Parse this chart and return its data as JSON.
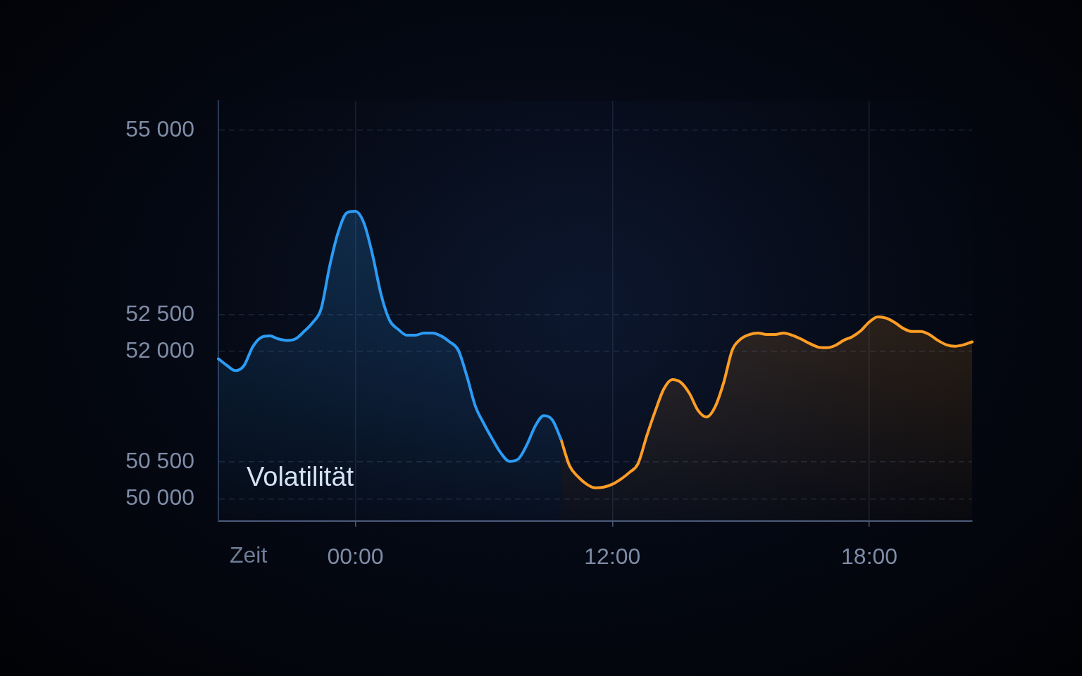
{
  "chart_data": {
    "type": "area",
    "xlabel": "Zeit",
    "annotations": [
      "Volatilität"
    ],
    "categories": [
      null,
      null,
      null,
      null,
      null,
      null,
      null,
      null,
      null,
      null,
      null,
      null,
      null,
      null,
      null,
      null,
      "00:00",
      null,
      null,
      null,
      null,
      null,
      null,
      null,
      null,
      null,
      null,
      null,
      null,
      null,
      null,
      null,
      null,
      null,
      null,
      null,
      null,
      null,
      null,
      null,
      null,
      null,
      null,
      null,
      null,
      null,
      "12:00",
      null,
      null,
      null,
      null,
      null,
      null,
      null,
      null,
      null,
      null,
      null,
      null,
      null,
      null,
      null,
      null,
      null,
      null,
      null,
      null,
      null,
      null,
      null,
      null,
      null,
      null,
      null,
      null,
      null,
      "18:00",
      null,
      null,
      null,
      null,
      null,
      null,
      null,
      null,
      null,
      null,
      null,
      null
    ],
    "series": [
      {
        "color": "#2b9bf4",
        "values": [
          51900,
          51810,
          51740,
          51810,
          52060,
          52190,
          52210,
          52170,
          52150,
          52170,
          52270,
          52390,
          52580,
          53160,
          53620,
          53880,
          53900,
          53740,
          53310,
          52770,
          52420,
          52300,
          52220,
          52220,
          52250,
          52250,
          52210,
          52130,
          52020,
          51670,
          51260,
          51020,
          50810,
          50620,
          50510,
          50540,
          50730,
          50990,
          51130,
          51070,
          50810,
          null,
          null,
          null,
          null,
          null,
          null,
          null,
          null,
          null,
          null,
          null,
          null,
          null,
          null,
          null,
          null,
          null,
          null,
          null,
          null,
          null,
          null,
          null,
          null,
          null,
          null,
          null,
          null,
          null,
          null,
          null,
          null,
          null,
          null,
          null,
          null,
          null,
          null,
          null,
          null,
          null,
          null,
          null,
          null,
          null,
          null,
          null,
          null
        ]
      },
      {
        "color": "#ff9d25",
        "values": [
          null,
          null,
          null,
          null,
          null,
          null,
          null,
          null,
          null,
          null,
          null,
          null,
          null,
          null,
          null,
          null,
          null,
          null,
          null,
          null,
          null,
          null,
          null,
          null,
          null,
          null,
          null,
          null,
          null,
          null,
          null,
          null,
          null,
          null,
          null,
          null,
          null,
          null,
          null,
          null,
          50810,
          50450,
          50300,
          50200,
          50150,
          50160,
          50200,
          50270,
          50360,
          50480,
          50850,
          51190,
          51490,
          51620,
          51580,
          51430,
          51200,
          51110,
          51250,
          51580,
          52020,
          52170,
          52230,
          52250,
          52230,
          52230,
          52250,
          52220,
          52170,
          52110,
          52060,
          52050,
          52080,
          52150,
          52200,
          52280,
          52400,
          52470,
          52450,
          52390,
          52310,
          52270,
          52270,
          52230,
          52150,
          52090,
          52070,
          52090,
          52130
        ]
      }
    ],
    "ylim": [
      49700,
      55400
    ],
    "yticks": [
      {
        "value": 50000,
        "label": "50 000"
      },
      {
        "value": 50500,
        "label": "50 500"
      },
      {
        "value": 52000,
        "label": "52 000"
      },
      {
        "value": 52500,
        "label": "52 500"
      },
      {
        "value": 55000,
        "label": "55 000"
      }
    ],
    "grid": true
  }
}
